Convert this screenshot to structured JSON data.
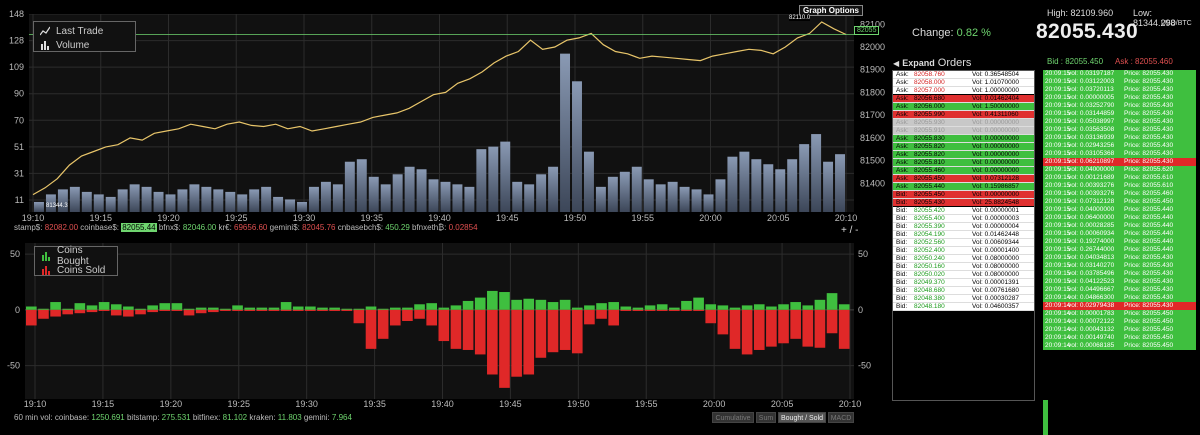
{
  "top_chart": {
    "legend": [
      {
        "label": "Last Trade",
        "icon": "line-chart-icon"
      },
      {
        "label": "Volume",
        "icon": "bar-chart-icon"
      }
    ],
    "graph_options_label": "Graph Options",
    "max_marker": "82110.0",
    "min_marker": "81344.3",
    "current_price_tag": "82055",
    "zoom_label": "+ / -"
  },
  "bottom_chart": {
    "legend": [
      {
        "label": "Coins Bought",
        "color": "#3fbf3f"
      },
      {
        "label": "Coins Sold",
        "color": "#e02828"
      }
    ]
  },
  "exchange_prices": [
    {
      "name": "stamp$:",
      "value": "82082.00",
      "style": "v"
    },
    {
      "name": "coinbase$:",
      "value": "82055.44",
      "style": "hl"
    },
    {
      "name": "bfnx$:",
      "value": "82046.00",
      "style": "g"
    },
    {
      "name": "kr€:",
      "value": "69656.60",
      "style": "v"
    },
    {
      "name": "gemini$:",
      "value": "82045.76",
      "style": "v"
    },
    {
      "name": "cnbasebch$:",
      "value": "450.29",
      "style": "g"
    },
    {
      "name": "bfnxeth₿:",
      "value": "0.02854",
      "style": "v"
    }
  ],
  "volume_bar": {
    "label": "60 min vol:",
    "items": [
      {
        "name": "coinbase:",
        "value": "1250.691"
      },
      {
        "name": "bitstamp:",
        "value": "275.531"
      },
      {
        "name": "bitfinex:",
        "value": "81.102"
      },
      {
        "name": "kraken:",
        "value": "11.803"
      },
      {
        "name": "gemini:",
        "value": "7.964"
      }
    ]
  },
  "chart_buttons": [
    {
      "label": "Cumulative",
      "active": false
    },
    {
      "label": "Sum",
      "active": false
    },
    {
      "label": "Bought / Sold",
      "active": true
    },
    {
      "label": "MACD",
      "active": false
    }
  ],
  "change": {
    "label": "Change:",
    "value": "0.82 %"
  },
  "orders_header": {
    "expand": "Expand",
    "title": "Orders"
  },
  "stats": {
    "high_label": "High:",
    "high": "82109.960",
    "low_label": "Low:",
    "low": "81344.298",
    "unit": "USD/BTC",
    "price": "82055.430",
    "bid_label": "Bid",
    "bid": "82055.450",
    "ask_label": "Ask",
    "ask": "82055.460"
  },
  "orders": [
    {
      "side": "Ask:",
      "price": "82058.760",
      "vol": "Vol: 0.36548504",
      "style": "ask"
    },
    {
      "side": "Ask:",
      "price": "82058.000",
      "vol": "Vol: 1.01070000",
      "style": "ask"
    },
    {
      "side": "Ask:",
      "price": "82057.000",
      "vol": "Vol: 1.00000000",
      "style": "ask sep"
    },
    {
      "side": "Ask:",
      "price": "82056.680",
      "vol": "Vol: 0.01462404",
      "style": "rd"
    },
    {
      "side": "Ask:",
      "price": "82056.000",
      "vol": "Vol: 1.50000000",
      "style": "gr"
    },
    {
      "side": "Ask:",
      "price": "82055.990",
      "vol": "Vol: 0.41311060",
      "style": "rd"
    },
    {
      "side": "Ask:",
      "price": "82055.930",
      "vol": "Vol: 0.00000000",
      "style": "gy"
    },
    {
      "side": "Ask:",
      "price": "82055.910",
      "vol": "Vol: 0.00000000",
      "style": "gy"
    },
    {
      "side": "Ask:",
      "price": "82055.830",
      "vol": "Vol: 0.00000000",
      "style": "gr"
    },
    {
      "side": "Ask:",
      "price": "82055.820",
      "vol": "Vol: 0.00000000",
      "style": "gr"
    },
    {
      "side": "Ask:",
      "price": "82055.820",
      "vol": "Vol: 0.00000000",
      "style": "gr"
    },
    {
      "side": "Ask:",
      "price": "82055.810",
      "vol": "Vol: 0.00000000",
      "style": "gr"
    },
    {
      "side": "Ask:",
      "price": "82055.460",
      "vol": "Vol: 0.00000000",
      "style": "gr"
    },
    {
      "side": "Ask:",
      "price": "82055.450",
      "vol": "Vol: 0.07312128",
      "style": "rd"
    },
    {
      "side": "Ask:",
      "price": "82055.440",
      "vol": "Vol: 0.15986857",
      "style": "gr"
    },
    {
      "side": "Bid:",
      "price": "82055.450",
      "vol": "Vol: 0.00000000",
      "style": "rd"
    },
    {
      "side": "Bid:",
      "price": "82055.430",
      "vol": "Vol: 25.8824548",
      "style": "rd sep"
    },
    {
      "side": "Bid:",
      "price": "82055.420",
      "vol": "Vol: 0.00000001",
      "style": "bid"
    },
    {
      "side": "Bid:",
      "price": "82055.400",
      "vol": "Vol: 0.00000003",
      "style": "bid"
    },
    {
      "side": "Bid:",
      "price": "82055.390",
      "vol": "Vol: 0.00000004",
      "style": "bid"
    },
    {
      "side": "Bid:",
      "price": "82054.190",
      "vol": "Vol: 0.01462448",
      "style": "bid"
    },
    {
      "side": "Bid:",
      "price": "82052.560",
      "vol": "Vol: 0.00609344",
      "style": "bid"
    },
    {
      "side": "Bid:",
      "price": "82052.400",
      "vol": "Vol: 0.00001400",
      "style": "bid"
    },
    {
      "side": "Bid:",
      "price": "82050.240",
      "vol": "Vol: 0.08000000",
      "style": "bid"
    },
    {
      "side": "Bid:",
      "price": "82050.160",
      "vol": "Vol: 0.08000000",
      "style": "bid"
    },
    {
      "side": "Bid:",
      "price": "82050.020",
      "vol": "Vol: 0.08000000",
      "style": "bid"
    },
    {
      "side": "Bid:",
      "price": "82049.370",
      "vol": "Vol: 0.00001391",
      "style": "bid"
    },
    {
      "side": "Bid:",
      "price": "82048.680",
      "vol": "Vol: 0.00761680",
      "style": "bid"
    },
    {
      "side": "Bid:",
      "price": "82048.380",
      "vol": "Vol: 0.00030287",
      "style": "bid"
    },
    {
      "side": "Bid:",
      "price": "82048.180",
      "vol": "Vol: 0.04600357",
      "style": "bid"
    }
  ],
  "trades": [
    {
      "time": "20:09:15",
      "vol": "vol: 0.03197187",
      "price": "Price: 82055.430",
      "red": false
    },
    {
      "time": "20:09:15",
      "vol": "vol: 0.03122003",
      "price": "Price: 82055.430",
      "red": false
    },
    {
      "time": "20:09:15",
      "vol": "vol: 0.03720113",
      "price": "Price: 82055.430",
      "red": false
    },
    {
      "time": "20:09:15",
      "vol": "vol: 0.00000005",
      "price": "Price: 82055.430",
      "red": false
    },
    {
      "time": "20:09:15",
      "vol": "vol: 0.03252790",
      "price": "Price: 82055.430",
      "red": false
    },
    {
      "time": "20:09:15",
      "vol": "vol: 0.03144859",
      "price": "Price: 82055.430",
      "red": false
    },
    {
      "time": "20:09:15",
      "vol": "vol: 0.05038997",
      "price": "Price: 82055.430",
      "red": false
    },
    {
      "time": "20:09:15",
      "vol": "vol: 0.03563508",
      "price": "Price: 82055.430",
      "red": false
    },
    {
      "time": "20:09:15",
      "vol": "vol: 0.03136939",
      "price": "Price: 82055.430",
      "red": false
    },
    {
      "time": "20:09:15",
      "vol": "vol: 0.02943256",
      "price": "Price: 82055.430",
      "red": false
    },
    {
      "time": "20:09:15",
      "vol": "vol: 0.03105368",
      "price": "Price: 82055.430",
      "red": false
    },
    {
      "time": "20:09:15",
      "vol": "vol: 0.06210897",
      "price": "Price: 82055.430",
      "red": true
    },
    {
      "time": "20:09:15",
      "vol": "vol: 0.04000000",
      "price": "Price: 82055.620",
      "red": false
    },
    {
      "time": "20:09:15",
      "vol": "vol: 0.00121689",
      "price": "Price: 82055.610",
      "red": false
    },
    {
      "time": "20:09:15",
      "vol": "vol: 0.00393276",
      "price": "Price: 82055.610",
      "red": false
    },
    {
      "time": "20:09:15",
      "vol": "vol: 0.00393276",
      "price": "Price: 82055.460",
      "red": false
    },
    {
      "time": "20:09:15",
      "vol": "vol: 0.07312128",
      "price": "Price: 82055.450",
      "red": false
    },
    {
      "time": "20:09:15",
      "vol": "vol: 0.04000000",
      "price": "Price: 82055.440",
      "red": false
    },
    {
      "time": "20:09:15",
      "vol": "vol: 0.06400000",
      "price": "Price: 82055.440",
      "red": false
    },
    {
      "time": "20:09:15",
      "vol": "vol: 0.00028285",
      "price": "Price: 82055.440",
      "red": false
    },
    {
      "time": "20:09:15",
      "vol": "vol: 0.00060934",
      "price": "Price: 82055.440",
      "red": false
    },
    {
      "time": "20:09:15",
      "vol": "vol: 0.19274000",
      "price": "Price: 82055.440",
      "red": false
    },
    {
      "time": "20:09:15",
      "vol": "vol: 0.26744000",
      "price": "Price: 82055.440",
      "red": false
    },
    {
      "time": "20:09:15",
      "vol": "vol: 0.04034813",
      "price": "Price: 82055.430",
      "red": false
    },
    {
      "time": "20:09:15",
      "vol": "vol: 0.03140270",
      "price": "Price: 82055.430",
      "red": false
    },
    {
      "time": "20:09:15",
      "vol": "vol: 0.03785496",
      "price": "Price: 82055.430",
      "red": false
    },
    {
      "time": "20:09:15",
      "vol": "vol: 0.04122523",
      "price": "Price: 82055.430",
      "red": false
    },
    {
      "time": "20:09:15",
      "vol": "vol: 0.04496667",
      "price": "Price: 82055.430",
      "red": false
    },
    {
      "time": "20:09:14",
      "vol": "vol: 0.04866300",
      "price": "Price: 82055.430",
      "red": false
    },
    {
      "time": "20:09:14",
      "vol": "vol: 0.02979438",
      "price": "Price: 82055.430",
      "red": true
    },
    {
      "time": "20:09:14",
      "vol": "vol: 0.00001783",
      "price": "Price: 82055.450",
      "red": false
    },
    {
      "time": "20:09:14",
      "vol": "vol: 0.00072122",
      "price": "Price: 82055.450",
      "red": false
    },
    {
      "time": "20:09:14",
      "vol": "vol: 0.00043132",
      "price": "Price: 82055.450",
      "red": false
    },
    {
      "time": "20:09:14",
      "vol": "vol: 0.00149740",
      "price": "Price: 82055.450",
      "red": false
    },
    {
      "time": "20:09:14",
      "vol": "vol: 0.00068185",
      "price": "Price: 82055.450",
      "red": false
    }
  ],
  "chart_data": [
    {
      "type": "line",
      "name": "Last Trade / Volume",
      "x_ticks": [
        "19:10",
        "19:15",
        "19:20",
        "19:25",
        "19:30",
        "19:35",
        "19:40",
        "19:45",
        "19:50",
        "19:55",
        "20:00",
        "20:05",
        "20:10"
      ],
      "y_left_ticks": [
        "11",
        "31",
        "51",
        "70",
        "90",
        "109",
        "128",
        "148"
      ],
      "y_right_ticks": [
        "81400",
        "81500",
        "81600",
        "81700",
        "81800",
        "81900",
        "82000",
        "82100"
      ],
      "ylim_price": [
        81300,
        82110
      ],
      "ylim_volume": [
        0,
        148
      ],
      "series": [
        {
          "name": "Last Trade",
          "color": "#e8c56a",
          "values": [
            81350,
            81380,
            81420,
            81480,
            81520,
            81540,
            81560,
            81570,
            81600,
            81590,
            81620,
            81630,
            81640,
            81660,
            81650,
            81640,
            81660,
            81670,
            81655,
            81650,
            81660,
            81640,
            81650,
            81630,
            81640,
            81650,
            81660,
            81670,
            81690,
            81700,
            81710,
            81730,
            81760,
            81790,
            81800,
            81840,
            81860,
            81890,
            81930,
            81960,
            81980,
            82030,
            81990,
            82000,
            82030,
            82040,
            82060,
            82010,
            81980,
            81970,
            81950,
            81960,
            81955,
            81950,
            81945,
            81940,
            81960,
            81970,
            81980,
            81990,
            81985,
            81970,
            82000,
            82040,
            82060,
            82110,
            82080,
            82055
          ]
        },
        {
          "name": "Volume",
          "color": "#6f7f94",
          "values": [
            8,
            14,
            18,
            20,
            16,
            14,
            12,
            18,
            22,
            20,
            16,
            14,
            18,
            22,
            20,
            18,
            16,
            14,
            18,
            20,
            12,
            10,
            8,
            20,
            24,
            22,
            40,
            42,
            28,
            22,
            30,
            36,
            34,
            26,
            24,
            22,
            20,
            50,
            52,
            56,
            24,
            22,
            30,
            36,
            126,
            104,
            48,
            20,
            28,
            32,
            36,
            26,
            22,
            24,
            20,
            18,
            14,
            26,
            44,
            48,
            42,
            38,
            34,
            42,
            54,
            62,
            40,
            46
          ]
        }
      ]
    },
    {
      "type": "bar",
      "name": "Bought / Sold",
      "x_ticks": [
        "19:10",
        "19:15",
        "19:20",
        "19:25",
        "19:30",
        "19:35",
        "19:40",
        "19:45",
        "19:50",
        "19:55",
        "20:00",
        "20:05",
        "20:10"
      ],
      "y_ticks": [
        "50",
        "0",
        "-50"
      ],
      "ylim": [
        -80,
        60
      ],
      "series": [
        {
          "name": "Coins Bought",
          "color": "#3fbf3f",
          "values": [
            3,
            1,
            7,
            1,
            6,
            4,
            7,
            5,
            3,
            1,
            4,
            6,
            6,
            1,
            2,
            2,
            1,
            4,
            2,
            2,
            2,
            7,
            3,
            3,
            2,
            2,
            1,
            1,
            3,
            1,
            2,
            2,
            5,
            6,
            2,
            4,
            8,
            11,
            17,
            16,
            9,
            10,
            9,
            7,
            9,
            2,
            4,
            6,
            7,
            3,
            2,
            4,
            5,
            2,
            8,
            11,
            5,
            4,
            2,
            4,
            5,
            3,
            5,
            7,
            4,
            9,
            15,
            5
          ]
        },
        {
          "name": "Coins Sold",
          "color": "#e02828",
          "values": [
            -14,
            -8,
            -6,
            -4,
            -3,
            -2,
            -1,
            -5,
            -6,
            -4,
            -2,
            -1,
            -1,
            -5,
            -3,
            -2,
            -1,
            -1,
            -1,
            -1,
            -1,
            -1,
            -1,
            -1,
            -1,
            -1,
            -1,
            -12,
            -35,
            -26,
            -14,
            -10,
            -8,
            -14,
            -28,
            -35,
            -36,
            -40,
            -58,
            -70,
            -60,
            -58,
            -43,
            -38,
            -36,
            -39,
            -13,
            -8,
            -14,
            -1,
            -1,
            -1,
            -1,
            -1,
            -1,
            -1,
            -12,
            -22,
            -35,
            -40,
            -36,
            -33,
            -30,
            -26,
            -33,
            -34,
            -21,
            -35
          ]
        }
      ]
    }
  ]
}
